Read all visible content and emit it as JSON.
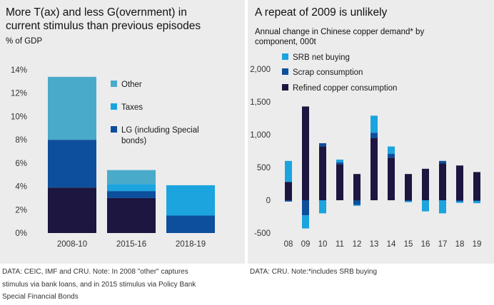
{
  "chart_data": [
    {
      "type": "bar",
      "stacked": true,
      "title": "More T(ax) and less G(overnment) in current stimulus than previous episodes",
      "title_lines": [
        "More T(ax) and less G(overnment) in",
        "current stimulus than previous episodes"
      ],
      "ylabel": "% of GDP",
      "ylim": [
        0,
        14
      ],
      "yticks": [
        0,
        2,
        4,
        6,
        8,
        10,
        12,
        14
      ],
      "ytick_labels": [
        "0%",
        "2%",
        "4%",
        "6%",
        "8%",
        "10%",
        "12%",
        "14%"
      ],
      "categories": [
        "2008-10",
        "2015-16",
        "2018-19"
      ],
      "series": [
        {
          "name": "",
          "color": "#1c1640",
          "values": [
            3.9,
            3.0,
            0
          ]
        },
        {
          "name": "LG (including Special bonds)",
          "color": "#0d4f9c",
          "values": [
            4.1,
            0.6,
            1.5
          ]
        },
        {
          "name": "Taxes",
          "color": "#1ba4de",
          "values": [
            0,
            0.6,
            2.6
          ]
        },
        {
          "name": "Other",
          "color": "#4aaac9",
          "values": [
            5.4,
            1.2,
            0
          ]
        }
      ],
      "legend": [
        {
          "label": "Other",
          "color": "#4aaac9"
        },
        {
          "label": "Taxes",
          "color": "#1ba4de"
        },
        {
          "label_lines": [
            "LG (including Special",
            "bonds)"
          ],
          "color": "#0d4f9c"
        }
      ],
      "legend_placement": "right",
      "grid": false
    },
    {
      "type": "bar",
      "stacked": true,
      "title": "A repeat of 2009 is unlikely",
      "subtitle_lines": [
        "Annual change in Chinese copper demand* by",
        "component, 000t"
      ],
      "ylim": [
        -500,
        2000
      ],
      "yticks": [
        -500,
        0,
        500,
        1000,
        1500,
        2000
      ],
      "ytick_labels": [
        "-500",
        "0",
        "500",
        "1,000",
        "1,500",
        "2,000"
      ],
      "categories": [
        "08",
        "09",
        "10",
        "11",
        "12",
        "13",
        "14",
        "15",
        "16",
        "17",
        "18",
        "19"
      ],
      "series": [
        {
          "name": "Refined copper consumption",
          "color": "#1c1640",
          "values": [
            280,
            1430,
            820,
            550,
            400,
            950,
            650,
            400,
            480,
            560,
            530,
            430
          ]
        },
        {
          "name": "Scrap consumption",
          "color": "#0d4f9c",
          "values": [
            -20,
            -230,
            50,
            30,
            -70,
            80,
            60,
            -15,
            0,
            40,
            -20,
            -15
          ]
        },
        {
          "name": "SRB net buying",
          "color": "#1ba4de",
          "values": [
            320,
            -200,
            -200,
            40,
            -15,
            260,
            110,
            -15,
            -170,
            -200,
            -20,
            -30
          ]
        }
      ],
      "legend": [
        {
          "label": "SRB net buying",
          "color": "#1ba4de"
        },
        {
          "label": "Scrap consumption",
          "color": "#0d4f9c"
        },
        {
          "label": "Refined copper consumption",
          "color": "#1c1640"
        }
      ],
      "legend_placement": "top-left",
      "grid": false
    }
  ],
  "footnotes": {
    "left_lines": [
      "DATA: CEIC, IMF and CRU. Note: In 2008 \"other\" captures",
      "stimulus via bank loans, and in 2015 stimulus via Policy Bank",
      "Special Financial Bonds"
    ],
    "right": "DATA: CRU. Note:*includes SRB buying"
  }
}
